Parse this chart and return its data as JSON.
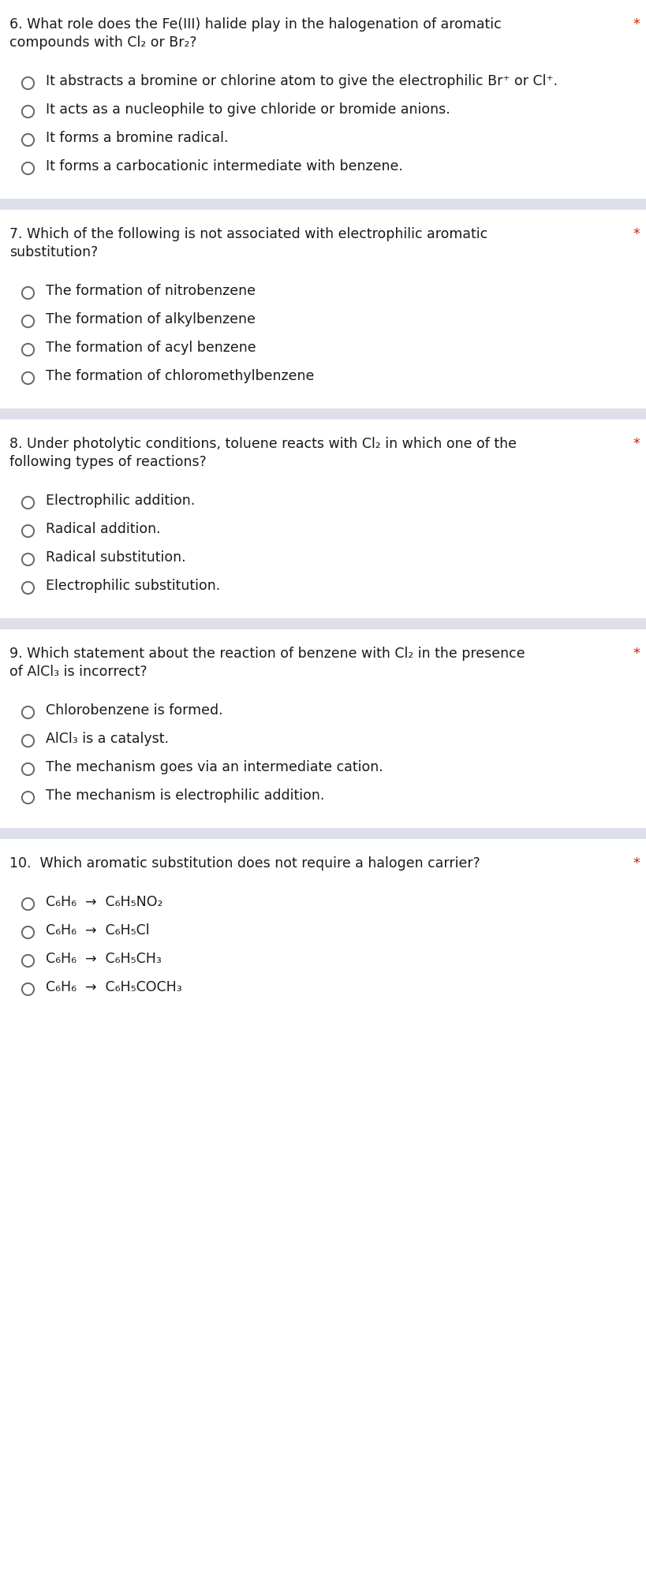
{
  "bg_color": "#ffffff",
  "divider_color": "#dde0ea",
  "question_color": "#1a1a1a",
  "option_color": "#1a1a1a",
  "asterisk_color": "#cc2200",
  "circle_edgecolor": "#666666",
  "questions": [
    {
      "number": "6.",
      "text": "What role does the Fe(III) halide play in the halogenation of aromatic\ncompounds with Cl₂ or Br₂?",
      "asterisk": true,
      "options": [
        "It abstracts a bromine or chlorine atom to give the electrophilic Br⁺ or Cl⁺.",
        "It acts as a nucleophile to give chloride or bromide anions.",
        "It forms a bromine radical.",
        "It forms a carbocationic intermediate with benzene."
      ],
      "has_top_divider": false
    },
    {
      "number": "7.",
      "text": "Which of the following is not associated with electrophilic aromatic\nsubstitution?",
      "asterisk": true,
      "options": [
        "The formation of nitrobenzene",
        "The formation of alkylbenzene",
        "The formation of acyl benzene",
        "The formation of chloromethylbenzene"
      ],
      "has_top_divider": true
    },
    {
      "number": "8.",
      "text": "Under photolytic conditions, toluene reacts with Cl₂ in which one of the\nfollowing types of reactions?",
      "asterisk": true,
      "options": [
        "Electrophilic addition.",
        "Radical addition.",
        "Radical substitution.",
        "Electrophilic substitution."
      ],
      "has_top_divider": true
    },
    {
      "number": "9.",
      "text": "Which statement about the reaction of benzene with Cl₂ in the presence\nof AlCl₃ is incorrect?",
      "asterisk": true,
      "options": [
        "Chlorobenzene is formed.",
        "AlCl₃ is a catalyst.",
        "The mechanism goes via an intermediate cation.",
        "The mechanism is electrophilic addition."
      ],
      "has_top_divider": true
    },
    {
      "number": "10.",
      "text": " Which aromatic substitution does not require a halogen carrier?",
      "asterisk": true,
      "options": [
        "C₆H₆  →  C₆H₅NO₂",
        "C₆H₆  →  C₆H₅Cl",
        "C₆H₆  →  C₆H₅CH₃",
        "C₆H₆  →  C₆H₅COCH₃"
      ],
      "has_top_divider": true
    }
  ],
  "fig_width": 8.2,
  "fig_height": 20.05,
  "dpi": 100,
  "font_size": 12.5,
  "font_family": "DejaVu Sans"
}
